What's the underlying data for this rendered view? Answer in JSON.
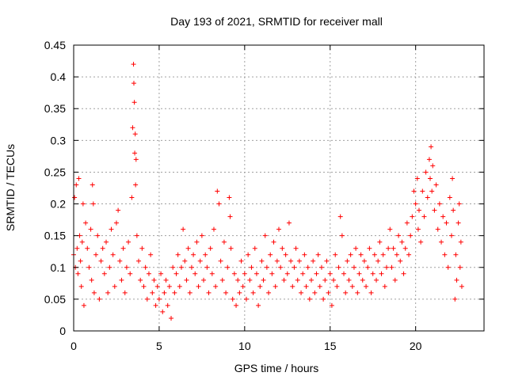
{
  "chart_data": {
    "type": "scatter",
    "title": "Day 193 of 2021, SRMTID for receiver mall",
    "xlabel": "GPS time / hours",
    "ylabel": "SRMTID / TECUs",
    "xlim": [
      0,
      24
    ],
    "ylim": [
      0,
      0.45
    ],
    "grid": true,
    "marker": "plus",
    "x_ticks": [
      "0",
      "5",
      "10",
      "15",
      "20"
    ],
    "y_ticks": [
      "0",
      "0.05",
      "0.1",
      "0.15",
      "0.2",
      "0.25",
      "0.3",
      "0.35",
      "0.4",
      "0.45"
    ],
    "series": [
      {
        "color": "#ff0000",
        "points": [
          [
            0.0,
            0.12
          ],
          [
            0.05,
            0.21
          ],
          [
            0.1,
            0.1
          ],
          [
            0.15,
            0.23
          ],
          [
            0.2,
            0.13
          ],
          [
            0.25,
            0.09
          ],
          [
            0.3,
            0.24
          ],
          [
            0.35,
            0.15
          ],
          [
            0.4,
            0.11
          ],
          [
            0.45,
            0.07
          ],
          [
            0.5,
            0.14
          ],
          [
            0.55,
            0.2
          ],
          [
            0.6,
            0.04
          ],
          [
            0.7,
            0.17
          ],
          [
            0.8,
            0.13
          ],
          [
            0.9,
            0.1
          ],
          [
            1.0,
            0.16
          ],
          [
            1.05,
            0.08
          ],
          [
            1.1,
            0.23
          ],
          [
            1.15,
            0.2
          ],
          [
            1.2,
            0.06
          ],
          [
            1.3,
            0.12
          ],
          [
            1.4,
            0.15
          ],
          [
            1.5,
            0.05
          ],
          [
            1.6,
            0.11
          ],
          [
            1.7,
            0.13
          ],
          [
            1.8,
            0.09
          ],
          [
            1.9,
            0.14
          ],
          [
            2.0,
            0.06
          ],
          [
            2.1,
            0.1
          ],
          [
            2.2,
            0.16
          ],
          [
            2.3,
            0.12
          ],
          [
            2.4,
            0.07
          ],
          [
            2.5,
            0.17
          ],
          [
            2.6,
            0.19
          ],
          [
            2.7,
            0.11
          ],
          [
            2.8,
            0.08
          ],
          [
            2.9,
            0.13
          ],
          [
            3.0,
            0.06
          ],
          [
            3.1,
            0.1
          ],
          [
            3.2,
            0.14
          ],
          [
            3.3,
            0.09
          ],
          [
            3.4,
            0.21
          ],
          [
            3.45,
            0.32
          ],
          [
            3.5,
            0.42
          ],
          [
            3.52,
            0.39
          ],
          [
            3.55,
            0.36
          ],
          [
            3.57,
            0.28
          ],
          [
            3.6,
            0.31
          ],
          [
            3.62,
            0.23
          ],
          [
            3.65,
            0.27
          ],
          [
            3.7,
            0.15
          ],
          [
            3.8,
            0.11
          ],
          [
            3.9,
            0.08
          ],
          [
            4.0,
            0.13
          ],
          [
            4.1,
            0.07
          ],
          [
            4.2,
            0.1
          ],
          [
            4.3,
            0.05
          ],
          [
            4.4,
            0.09
          ],
          [
            4.5,
            0.12
          ],
          [
            4.6,
            0.06
          ],
          [
            4.7,
            0.08
          ],
          [
            4.8,
            0.04
          ],
          [
            4.9,
            0.07
          ],
          [
            5.0,
            0.05
          ],
          [
            5.1,
            0.09
          ],
          [
            5.2,
            0.03
          ],
          [
            5.3,
            0.06
          ],
          [
            5.4,
            0.08
          ],
          [
            5.5,
            0.04
          ],
          [
            5.6,
            0.07
          ],
          [
            5.7,
            0.02
          ],
          [
            5.8,
            0.1
          ],
          [
            5.9,
            0.06
          ],
          [
            6.0,
            0.09
          ],
          [
            6.1,
            0.12
          ],
          [
            6.2,
            0.07
          ],
          [
            6.3,
            0.1
          ],
          [
            6.4,
            0.16
          ],
          [
            6.5,
            0.11
          ],
          [
            6.6,
            0.08
          ],
          [
            6.7,
            0.13
          ],
          [
            6.8,
            0.06
          ],
          [
            6.9,
            0.1
          ],
          [
            7.0,
            0.12
          ],
          [
            7.1,
            0.09
          ],
          [
            7.2,
            0.14
          ],
          [
            7.3,
            0.07
          ],
          [
            7.4,
            0.11
          ],
          [
            7.5,
            0.15
          ],
          [
            7.6,
            0.08
          ],
          [
            7.7,
            0.12
          ],
          [
            7.8,
            0.1
          ],
          [
            7.9,
            0.06
          ],
          [
            8.0,
            0.13
          ],
          [
            8.1,
            0.09
          ],
          [
            8.2,
            0.16
          ],
          [
            8.3,
            0.07
          ],
          [
            8.4,
            0.22
          ],
          [
            8.5,
            0.2
          ],
          [
            8.6,
            0.11
          ],
          [
            8.7,
            0.08
          ],
          [
            8.8,
            0.14
          ],
          [
            8.9,
            0.06
          ],
          [
            9.0,
            0.1
          ],
          [
            9.1,
            0.21
          ],
          [
            9.15,
            0.18
          ],
          [
            9.2,
            0.13
          ],
          [
            9.3,
            0.05
          ],
          [
            9.4,
            0.09
          ],
          [
            9.5,
            0.04
          ],
          [
            9.6,
            0.08
          ],
          [
            9.7,
            0.06
          ],
          [
            9.8,
            0.11
          ],
          [
            9.9,
            0.07
          ],
          [
            10.0,
            0.09
          ],
          [
            10.1,
            0.05
          ],
          [
            10.2,
            0.12
          ],
          [
            10.3,
            0.08
          ],
          [
            10.4,
            0.1
          ],
          [
            10.5,
            0.06
          ],
          [
            10.6,
            0.13
          ],
          [
            10.7,
            0.09
          ],
          [
            10.8,
            0.04
          ],
          [
            10.9,
            0.07
          ],
          [
            11.0,
            0.11
          ],
          [
            11.1,
            0.08
          ],
          [
            11.2,
            0.15
          ],
          [
            11.3,
            0.1
          ],
          [
            11.4,
            0.06
          ],
          [
            11.5,
            0.12
          ],
          [
            11.6,
            0.09
          ],
          [
            11.7,
            0.14
          ],
          [
            11.8,
            0.07
          ],
          [
            11.9,
            0.11
          ],
          [
            12.0,
            0.16
          ],
          [
            12.1,
            0.1
          ],
          [
            12.2,
            0.13
          ],
          [
            12.3,
            0.08
          ],
          [
            12.4,
            0.12
          ],
          [
            12.5,
            0.09
          ],
          [
            12.6,
            0.17
          ],
          [
            12.7,
            0.11
          ],
          [
            12.8,
            0.07
          ],
          [
            12.9,
            0.1
          ],
          [
            13.0,
            0.13
          ],
          [
            13.1,
            0.08
          ],
          [
            13.2,
            0.11
          ],
          [
            13.3,
            0.06
          ],
          [
            13.4,
            0.09
          ],
          [
            13.5,
            0.12
          ],
          [
            13.6,
            0.07
          ],
          [
            13.7,
            0.1
          ],
          [
            13.8,
            0.05
          ],
          [
            13.9,
            0.08
          ],
          [
            14.0,
            0.11
          ],
          [
            14.1,
            0.06
          ],
          [
            14.2,
            0.09
          ],
          [
            14.3,
            0.12
          ],
          [
            14.4,
            0.07
          ],
          [
            14.5,
            0.1
          ],
          [
            14.6,
            0.05
          ],
          [
            14.7,
            0.08
          ],
          [
            14.8,
            0.11
          ],
          [
            14.9,
            0.06
          ],
          [
            15.0,
            0.09
          ],
          [
            15.1,
            0.04
          ],
          [
            15.2,
            0.08
          ],
          [
            15.3,
            0.12
          ],
          [
            15.4,
            0.07
          ],
          [
            15.5,
            0.1
          ],
          [
            15.6,
            0.18
          ],
          [
            15.7,
            0.15
          ],
          [
            15.8,
            0.09
          ],
          [
            15.9,
            0.06
          ],
          [
            16.0,
            0.11
          ],
          [
            16.1,
            0.08
          ],
          [
            16.2,
            0.12
          ],
          [
            16.3,
            0.07
          ],
          [
            16.4,
            0.1
          ],
          [
            16.5,
            0.13
          ],
          [
            16.6,
            0.06
          ],
          [
            16.7,
            0.09
          ],
          [
            16.8,
            0.12
          ],
          [
            16.9,
            0.08
          ],
          [
            17.0,
            0.11
          ],
          [
            17.1,
            0.07
          ],
          [
            17.2,
            0.1
          ],
          [
            17.3,
            0.13
          ],
          [
            17.4,
            0.06
          ],
          [
            17.5,
            0.09
          ],
          [
            17.6,
            0.12
          ],
          [
            17.7,
            0.08
          ],
          [
            17.8,
            0.11
          ],
          [
            17.9,
            0.14
          ],
          [
            18.0,
            0.09
          ],
          [
            18.1,
            0.12
          ],
          [
            18.2,
            0.07
          ],
          [
            18.3,
            0.1
          ],
          [
            18.4,
            0.13
          ],
          [
            18.5,
            0.16
          ],
          [
            18.6,
            0.1
          ],
          [
            18.7,
            0.13
          ],
          [
            18.8,
            0.08
          ],
          [
            18.9,
            0.12
          ],
          [
            19.0,
            0.15
          ],
          [
            19.1,
            0.11
          ],
          [
            19.2,
            0.14
          ],
          [
            19.3,
            0.09
          ],
          [
            19.4,
            0.13
          ],
          [
            19.5,
            0.17
          ],
          [
            19.6,
            0.12
          ],
          [
            19.7,
            0.15
          ],
          [
            19.8,
            0.18
          ],
          [
            19.9,
            0.22
          ],
          [
            20.0,
            0.2
          ],
          [
            20.1,
            0.24
          ],
          [
            20.15,
            0.16
          ],
          [
            20.2,
            0.19
          ],
          [
            20.3,
            0.14
          ],
          [
            20.4,
            0.22
          ],
          [
            20.5,
            0.18
          ],
          [
            20.6,
            0.25
          ],
          [
            20.7,
            0.21
          ],
          [
            20.8,
            0.27
          ],
          [
            20.85,
            0.24
          ],
          [
            20.9,
            0.29
          ],
          [
            20.95,
            0.22
          ],
          [
            21.0,
            0.26
          ],
          [
            21.1,
            0.19
          ],
          [
            21.2,
            0.23
          ],
          [
            21.3,
            0.16
          ],
          [
            21.4,
            0.2
          ],
          [
            21.5,
            0.14
          ],
          [
            21.6,
            0.18
          ],
          [
            21.7,
            0.12
          ],
          [
            21.8,
            0.17
          ],
          [
            21.9,
            0.1
          ],
          [
            22.0,
            0.21
          ],
          [
            22.1,
            0.15
          ],
          [
            22.15,
            0.24
          ],
          [
            22.2,
            0.19
          ],
          [
            22.3,
            0.05
          ],
          [
            22.35,
            0.12
          ],
          [
            22.4,
            0.08
          ],
          [
            22.5,
            0.17
          ],
          [
            22.55,
            0.2
          ],
          [
            22.6,
            0.1
          ],
          [
            22.65,
            0.14
          ],
          [
            22.7,
            0.07
          ]
        ]
      }
    ]
  }
}
